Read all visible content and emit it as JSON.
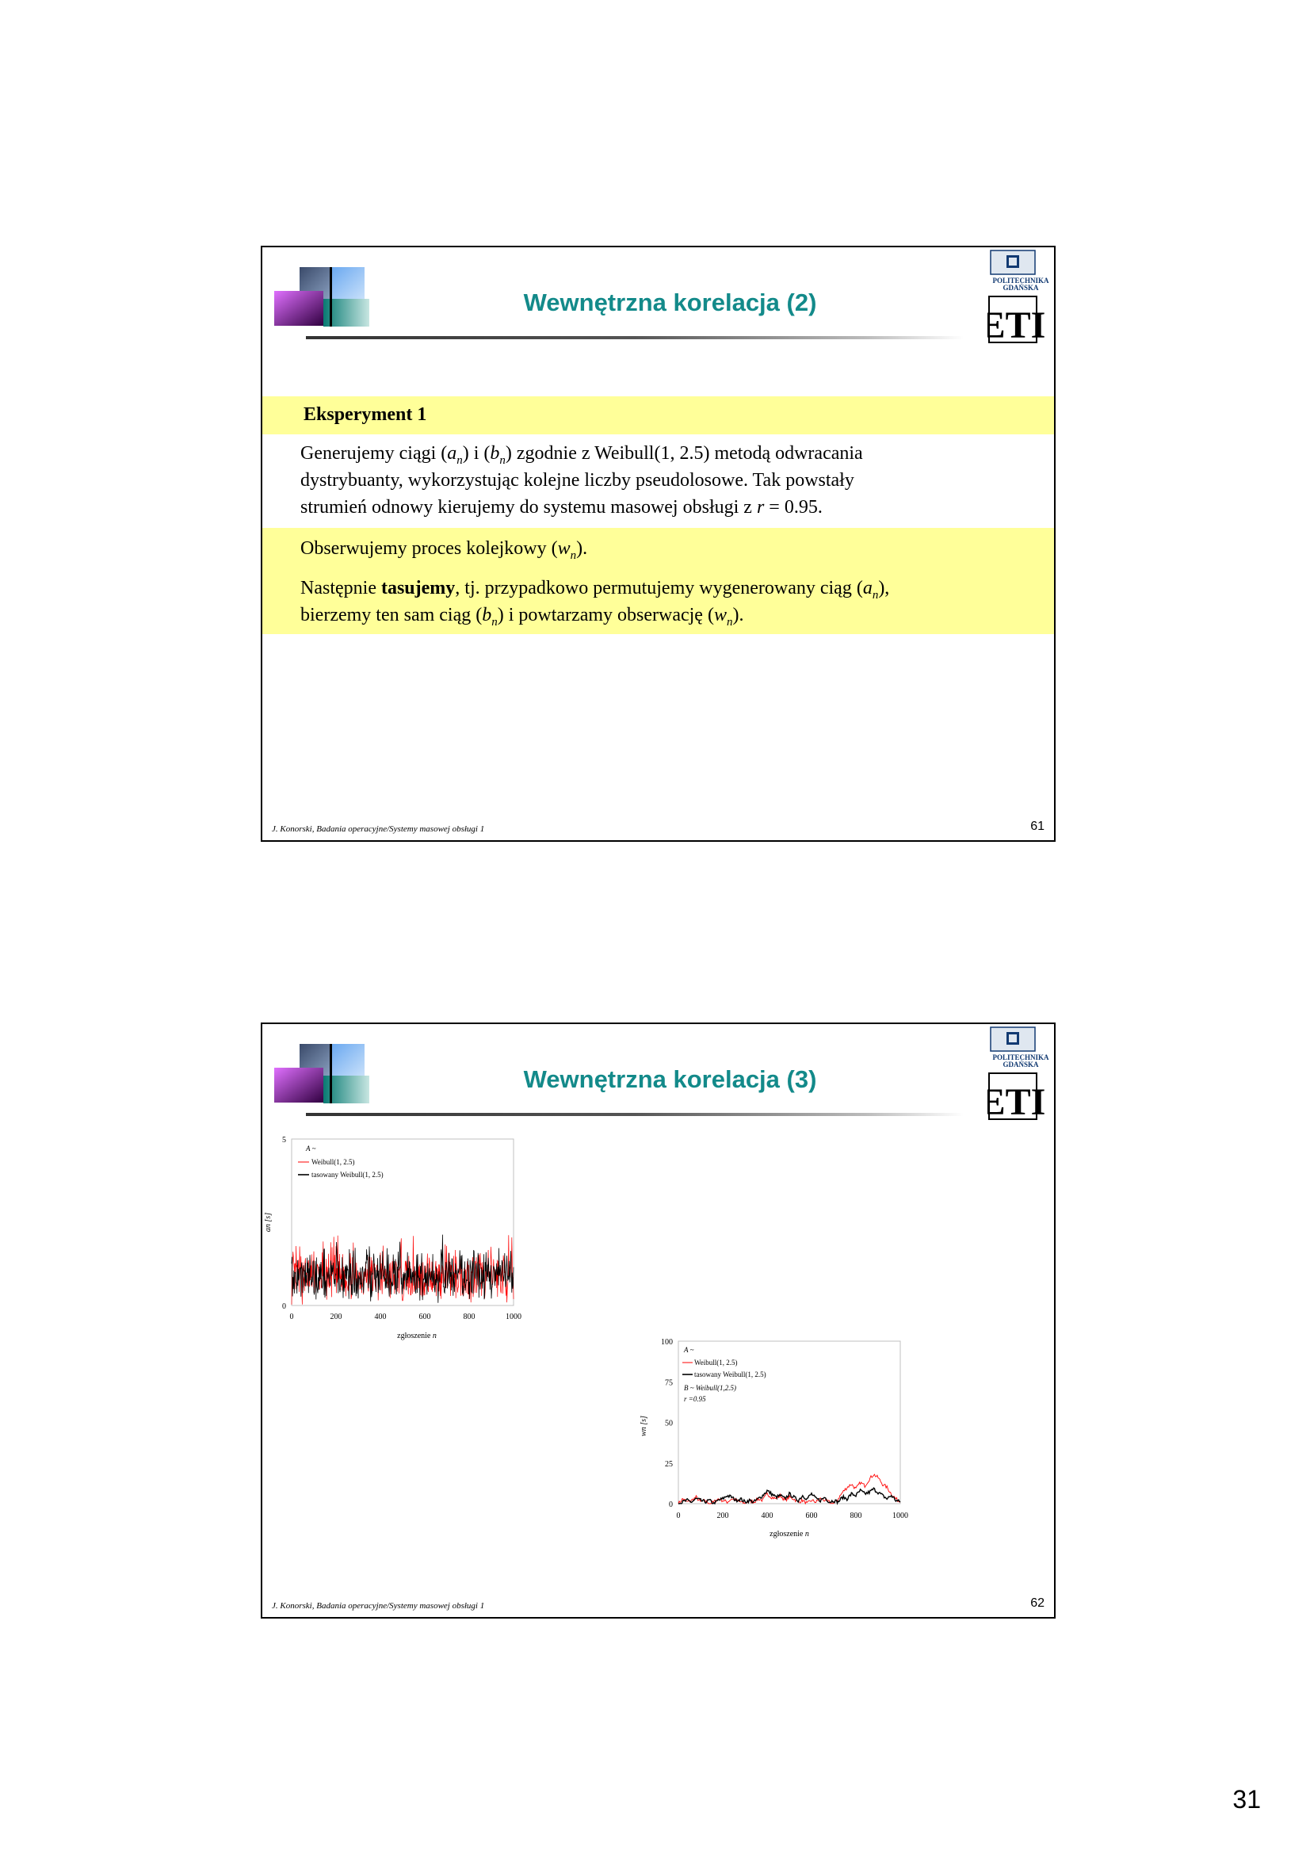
{
  "slide1": {
    "title": "Wewnętrzna korelacja (2)",
    "heading": "Eksperyment 1",
    "para1": {
      "l1a": "Generujemy ciągi (",
      "l1b": "a",
      "l1c": "n",
      "l1d": ") i (",
      "l1e": "b",
      "l1f": "n",
      "l1g": ") zgodnie z Weibull(1, 2.5) metodą odwracania",
      "l2": "dystrybuanty, wykorzystując kolejne liczby pseudolosowe. Tak powstały",
      "l3a": "strumień odnowy kierujemy do systemu masowej obsługi z ",
      "l3b": "r",
      "l3c": " = 0.95."
    },
    "para2": {
      "a": "Obserwujemy proces kolejkowy (",
      "b": "w",
      "c": "n",
      "d": ")."
    },
    "para3": {
      "l1a": "Następnie ",
      "l1b": "tasujemy",
      "l1c": ", tj. przypadkowo permutujemy wygenerowany ciąg (",
      "l1d": "a",
      "l1e": "n",
      "l1f": "),",
      "l2a": "bierzemy ten sam ciąg (",
      "l2b": "b",
      "l2c": "n",
      "l2d": ") i powtarzamy obserwację (",
      "l2e": "w",
      "l2f": "n",
      "l2g": ")."
    },
    "footer": "J. Konorski, Badania operacyjne/Systemy masowej obsługi 1",
    "number": "61"
  },
  "slide2": {
    "title": "Wewnętrzna korelacja (3)",
    "footer": "J. Konorski, Badania operacyjne/Systemy masowej obsługi 1",
    "number": "62"
  },
  "logo": {
    "line1": "POLITECHNIKA",
    "line2": "GDAŃSKA",
    "mark": "ETI"
  },
  "page_number": "31",
  "colors": {
    "title": "#138a8a",
    "band": "#ffff99",
    "series_red": "#ff0000",
    "series_black": "#000000"
  },
  "chart_data": [
    {
      "type": "line",
      "x": [
        0,
        1000
      ],
      "xlim": [
        0,
        1000
      ],
      "ylim": [
        0,
        5
      ],
      "xticks": [
        "0",
        "200",
        "400",
        "600",
        "800",
        "1000"
      ],
      "yticks": [
        "0",
        "5"
      ],
      "xlabel": "zgłoszenie",
      "xlabel_var": "n",
      "ylabel": "an [s]",
      "legend_header": "A ~",
      "series": [
        {
          "name": "Weibull(1, 2.5)",
          "color": "#ff0000",
          "approx_mean": 0.89,
          "approx_range": [
            0,
            3.1
          ]
        },
        {
          "name": "tasowany Weibull(1, 2.5)",
          "color": "#000000",
          "approx_mean": 0.89,
          "approx_range": [
            0,
            3.0
          ]
        }
      ]
    },
    {
      "type": "line",
      "xlim": [
        0,
        1000
      ],
      "ylim": [
        0,
        100
      ],
      "xticks": [
        "0",
        "200",
        "400",
        "600",
        "800",
        "1000"
      ],
      "yticks": [
        "0",
        "25",
        "50",
        "75",
        "100"
      ],
      "xlabel": "zgłoszenie",
      "xlabel_var": "n",
      "ylabel": "wn [s]",
      "legend_header": "A ~",
      "legend_extra": [
        "B ~  Weibull(1,2.5)",
        "r =0.95"
      ],
      "series": [
        {
          "name": "Weibull(1, 2.5)",
          "color": "#ff0000",
          "x": [
            0,
            20,
            40,
            60,
            80,
            100,
            120,
            140,
            160,
            180,
            200,
            220,
            240,
            260,
            280,
            300,
            320,
            340,
            360,
            380,
            400,
            420,
            440,
            460,
            480,
            500,
            520,
            540,
            560,
            580,
            600,
            620,
            640,
            660,
            680,
            700,
            720,
            740,
            760,
            780,
            800,
            820,
            840,
            860,
            880,
            900,
            920,
            940,
            960,
            980,
            1000
          ],
          "y": [
            0,
            3,
            1,
            2,
            4,
            1,
            2,
            0,
            1,
            3,
            2,
            1,
            3,
            2,
            1,
            0,
            2,
            1,
            3,
            2,
            6,
            4,
            3,
            5,
            2,
            4,
            3,
            1,
            2,
            0,
            2,
            1,
            3,
            2,
            1,
            0,
            3,
            7,
            10,
            12,
            9,
            13,
            11,
            15,
            18,
            16,
            12,
            10,
            6,
            3,
            1
          ]
        },
        {
          "name": "tasowany Weibull(1, 2.5)",
          "color": "#000000",
          "x": [
            0,
            20,
            40,
            60,
            80,
            100,
            120,
            140,
            160,
            180,
            200,
            220,
            240,
            260,
            280,
            300,
            320,
            340,
            360,
            380,
            400,
            420,
            440,
            460,
            480,
            500,
            520,
            540,
            560,
            580,
            600,
            620,
            640,
            660,
            680,
            700,
            720,
            740,
            760,
            780,
            800,
            820,
            840,
            860,
            880,
            900,
            920,
            940,
            960,
            980,
            1000
          ],
          "y": [
            0,
            1,
            2,
            1,
            3,
            2,
            1,
            2,
            0,
            2,
            3,
            5,
            4,
            2,
            3,
            1,
            2,
            1,
            3,
            5,
            8,
            6,
            4,
            5,
            3,
            6,
            4,
            2,
            5,
            3,
            6,
            3,
            2,
            4,
            1,
            2,
            1,
            4,
            3,
            6,
            5,
            8,
            6,
            7,
            9,
            7,
            5,
            3,
            5,
            2,
            1
          ]
        }
      ]
    }
  ]
}
